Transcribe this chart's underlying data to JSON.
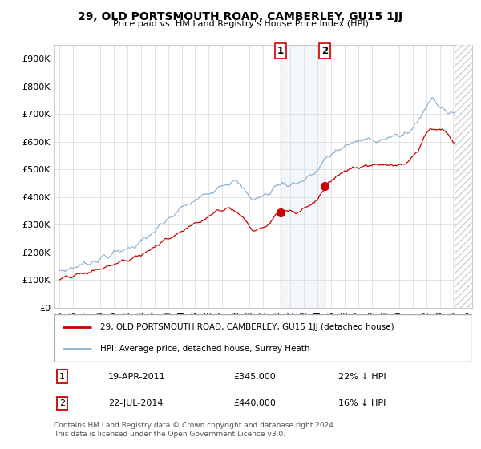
{
  "title": "29, OLD PORTSMOUTH ROAD, CAMBERLEY, GU15 1JJ",
  "subtitle": "Price paid vs. HM Land Registry's House Price Index (HPI)",
  "ylabel_ticks": [
    "£0",
    "£100K",
    "£200K",
    "£300K",
    "£400K",
    "£500K",
    "£600K",
    "£700K",
    "£800K",
    "£900K"
  ],
  "ylim": [
    0,
    950000
  ],
  "yticks": [
    0,
    100000,
    200000,
    300000,
    400000,
    500000,
    600000,
    700000,
    800000,
    900000
  ],
  "legend_line1": "29, OLD PORTSMOUTH ROAD, CAMBERLEY, GU15 1JJ (detached house)",
  "legend_line2": "HPI: Average price, detached house, Surrey Heath",
  "transaction1_label": "1",
  "transaction1_date": "19-APR-2011",
  "transaction1_price": "£345,000",
  "transaction1_pct": "22% ↓ HPI",
  "transaction2_label": "2",
  "transaction2_date": "22-JUL-2014",
  "transaction2_price": "£440,000",
  "transaction2_pct": "16% ↓ HPI",
  "footer": "Contains HM Land Registry data © Crown copyright and database right 2024.\nThis data is licensed under the Open Government Licence v3.0.",
  "hpi_color": "#92b4d4",
  "price_color": "#cc0000",
  "marker1_x": 2011.3,
  "marker1_y": 345000,
  "marker2_x": 2014.55,
  "marker2_y": 440000,
  "vline1_x": 2011.3,
  "vline2_x": 2014.55,
  "data_end_x": 2024.08,
  "xmin": 1994.6,
  "xmax": 2025.4
}
